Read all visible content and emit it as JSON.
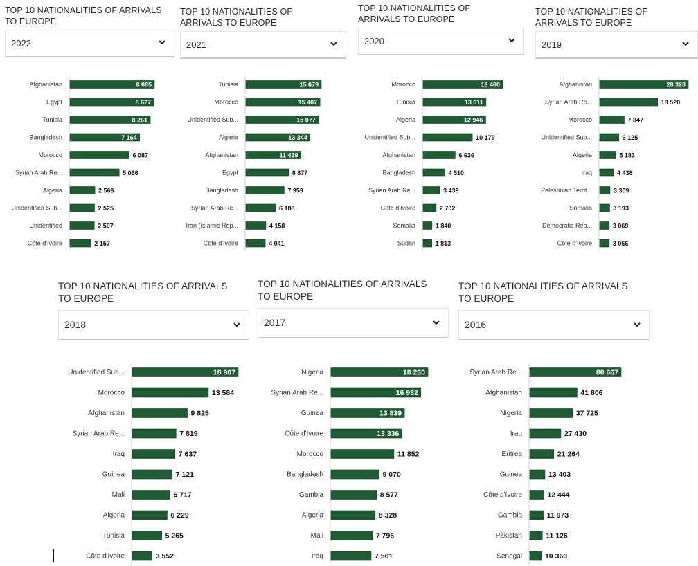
{
  "colors": {
    "bar": "#1f5c34",
    "bar_edge": "#0f3a1f",
    "axis": "#d0d0d0"
  },
  "icons": {
    "dropdown": "chevron-down-icon"
  },
  "panels": [
    {
      "title": "TOP 10 NATIONALITIES OF ARRIVALS TO EUROPE",
      "selected_year": "2022"
    },
    {
      "title": "TOP 10 NATIONALITIES OF ARRIVALS TO EUROPE",
      "selected_year": "2021"
    },
    {
      "title": "TOP 10 NATIONALITIES OF ARRIVALS TO EUROPE",
      "selected_year": "2020"
    },
    {
      "title": "TOP 10 NATIONALITIES OF ARRIVALS TO EUROPE",
      "selected_year": "2019"
    },
    {
      "title": "TOP 10 NATIONALITIES OF ARRIVALS TO EUROPE",
      "selected_year": "2018"
    },
    {
      "title": "TOP 10 NATIONALITIES OF ARRIVALS TO EUROPE",
      "selected_year": "2017"
    },
    {
      "title": "TOP 10 NATIONALITIES OF ARRIVALS TO EUROPE",
      "selected_year": "2016"
    }
  ],
  "chart_data": [
    {
      "type": "bar",
      "orientation": "horizontal",
      "categories": [
        "Afghanistan",
        "Egypt",
        "Tunisia",
        "Bangladesh",
        "Morocco",
        "Syrian Arab Re...",
        "Algeria",
        "Unidentified Sub...",
        "Unidentified",
        "Côte d'Ivoire"
      ],
      "values": [
        8685,
        8627,
        8261,
        7164,
        6087,
        5066,
        2566,
        2525,
        2507,
        2157
      ],
      "labels": [
        "8 685",
        "8 627",
        "8 261",
        "7 164",
        "6 087",
        "5 066",
        "2 566",
        "2 525",
        "2 507",
        "2 157"
      ],
      "title": "TOP 10 NATIONALITIES OF ARRIVALS TO EUROPE",
      "xlabel": "",
      "ylabel": ""
    },
    {
      "type": "bar",
      "orientation": "horizontal",
      "categories": [
        "Tunisia",
        "Morocco",
        "Unidentified Sub...",
        "Algeria",
        "Afghanistan",
        "Egypt",
        "Bangladesh",
        "Syrian Arab Re...",
        "Iran (Islamic Rep...",
        "Côte d'Ivoire"
      ],
      "values": [
        15679,
        15407,
        15077,
        13344,
        11439,
        8877,
        7959,
        6188,
        4158,
        4041
      ],
      "labels": [
        "15 679",
        "15 407",
        "15 077",
        "13 344",
        "11 439",
        "8 877",
        "7 959",
        "6 188",
        "4 158",
        "4 041"
      ],
      "title": "TOP 10 NATIONALITIES OF ARRIVALS TO EUROPE",
      "xlabel": "",
      "ylabel": ""
    },
    {
      "type": "bar",
      "orientation": "horizontal",
      "categories": [
        "Morocco",
        "Tunisia",
        "Algeria",
        "Unidentified Sub...",
        "Afghanistan",
        "Bangladesh",
        "Syrian Arab Re...",
        "Côte d'Ivoire",
        "Somalia",
        "Sudan"
      ],
      "values": [
        16460,
        13011,
        12946,
        10179,
        6636,
        4510,
        3439,
        2702,
        1840,
        1813
      ],
      "labels": [
        "16 460",
        "13 011",
        "12 946",
        "10 179",
        "6 636",
        "4 510",
        "3 439",
        "2 702",
        "1 840",
        "1 813"
      ],
      "title": "TOP 10 NATIONALITIES OF ARRIVALS TO EUROPE",
      "xlabel": "",
      "ylabel": ""
    },
    {
      "type": "bar",
      "orientation": "horizontal",
      "categories": [
        "Afghanistan",
        "Syrian Arab Re...",
        "Morocco",
        "Unidentified Sub...",
        "Algeria",
        "Iraq",
        "Palestinian Territ...",
        "Somalia",
        "Democratic Rep...",
        "Côte d'Ivoire"
      ],
      "values": [
        28328,
        18520,
        7847,
        6125,
        5183,
        4438,
        3309,
        3193,
        3069,
        3066
      ],
      "labels": [
        "28 328",
        "18 520",
        "7 847",
        "6 125",
        "5 183",
        "4 438",
        "3 309",
        "3 193",
        "3 069",
        "3 066"
      ],
      "title": "TOP 10 NATIONALITIES OF ARRIVALS TO EUROPE",
      "xlabel": "",
      "ylabel": ""
    },
    {
      "type": "bar",
      "orientation": "horizontal",
      "categories": [
        "Unidentified Sub...",
        "Morocco",
        "Afghanistan",
        "Syrian Arab Re...",
        "Iraq",
        "Guinea",
        "Mali",
        "Algeria",
        "Tunisia",
        "Côte d'Ivoire"
      ],
      "values": [
        18907,
        13584,
        9825,
        7819,
        7637,
        7121,
        6717,
        6229,
        5265,
        3552
      ],
      "labels": [
        "18 907",
        "13 584",
        "9 825",
        "7 819",
        "7 637",
        "7 121",
        "6 717",
        "6 229",
        "5 265",
        "3 552"
      ],
      "title": "TOP 10 NATIONALITIES OF ARRIVALS TO EUROPE",
      "xlabel": "",
      "ylabel": ""
    },
    {
      "type": "bar",
      "orientation": "horizontal",
      "categories": [
        "Nigeria",
        "Syrian Arab Re...",
        "Guinea",
        "Côte d'Ivoire",
        "Morocco",
        "Bangladesh",
        "Gambia",
        "Algeria",
        "Mali",
        "Iraq"
      ],
      "values": [
        18260,
        16932,
        13839,
        13336,
        11852,
        9070,
        8577,
        8328,
        7796,
        7561
      ],
      "labels": [
        "18 260",
        "16 932",
        "13 839",
        "13 336",
        "11 852",
        "9 070",
        "8 577",
        "8 328",
        "7 796",
        "7 561"
      ],
      "title": "TOP 10 NATIONALITIES OF ARRIVALS TO EUROPE",
      "xlabel": "",
      "ylabel": ""
    },
    {
      "type": "bar",
      "orientation": "horizontal",
      "categories": [
        "Syrian Arab Re...",
        "Afghanistan",
        "Nigeria",
        "Iraq",
        "Eritrea",
        "Guinea",
        "Côte d'Ivoire",
        "Gambia",
        "Pakistan",
        "Senegal"
      ],
      "values": [
        80667,
        41806,
        37725,
        27430,
        21264,
        13403,
        12444,
        11973,
        11126,
        10360
      ],
      "labels": [
        "80 667",
        "41 806",
        "37 725",
        "27 430",
        "21 264",
        "13 403",
        "12 444",
        "11 973",
        "11 126",
        "10 360"
      ],
      "title": "TOP 10 NATIONALITIES OF ARRIVALS TO EUROPE",
      "xlabel": "",
      "ylabel": ""
    }
  ]
}
